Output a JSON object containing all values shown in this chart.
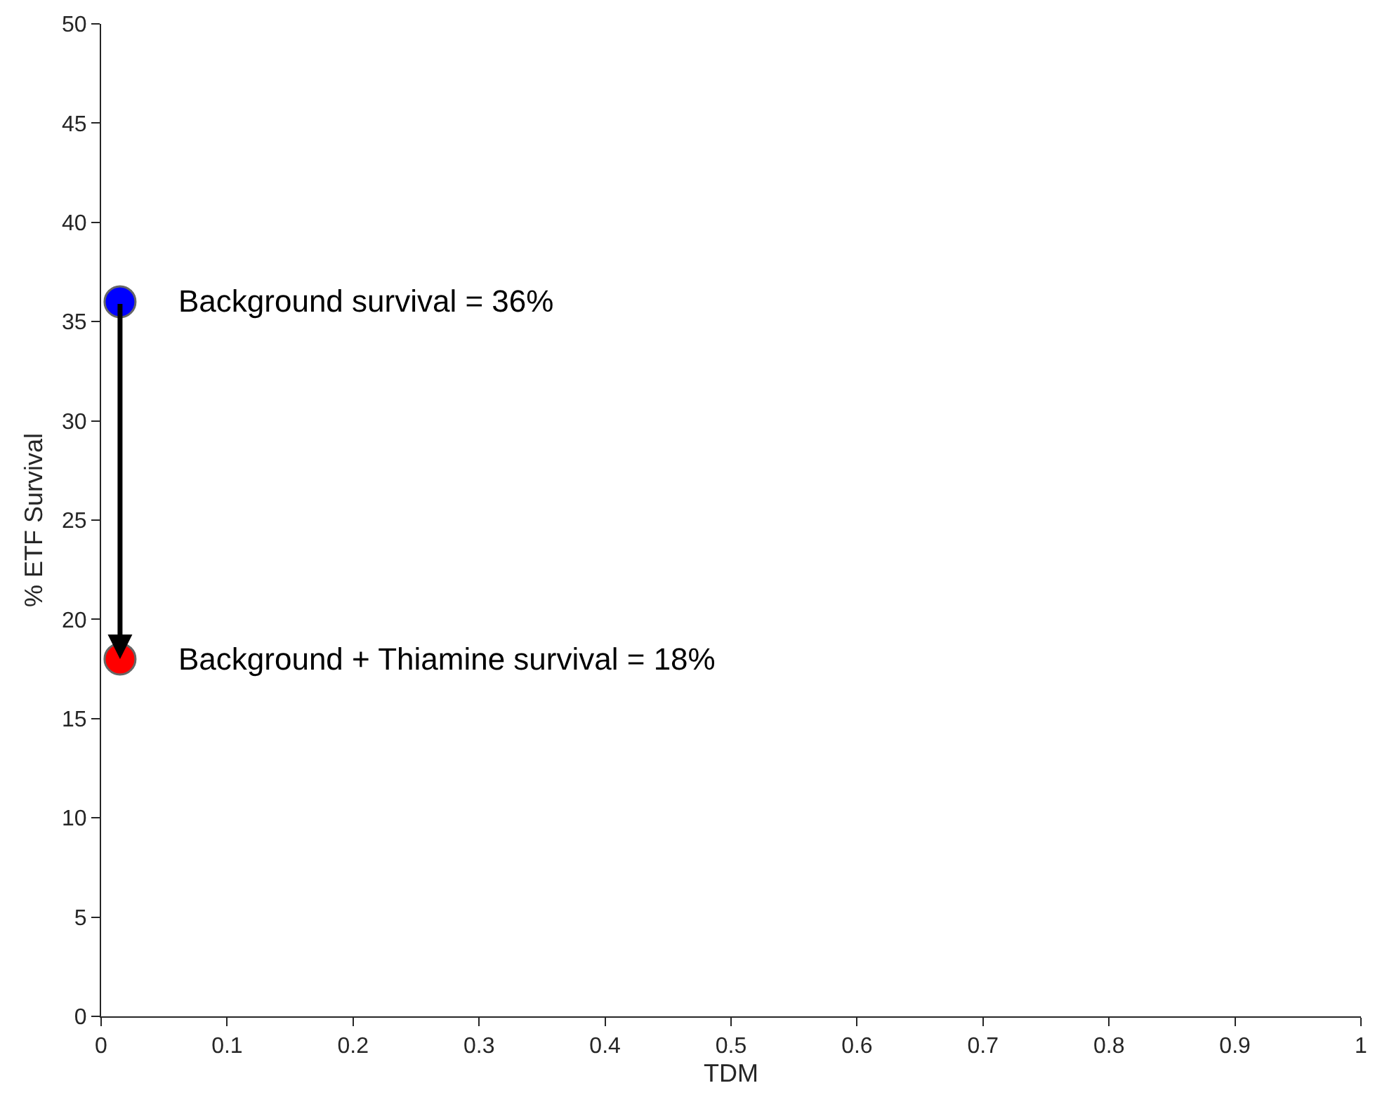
{
  "chart_data": {
    "type": "scatter",
    "xlabel": "TDM",
    "ylabel": "% ETF Survival",
    "x": [
      0.015
    ],
    "series": [
      {
        "color": "#0000ff",
        "values": [
          36
        ]
      },
      {
        "color": "#ff0000",
        "values": [
          18
        ]
      }
    ],
    "annotations": [
      {
        "text": "Background survival = 36%",
        "x": 0.015,
        "y": 36
      },
      {
        "text": "Background + Thiamine survival = 18%",
        "x": 0.015,
        "y": 18
      }
    ],
    "xlim": [
      0,
      1
    ],
    "xticks": [
      0,
      0.1,
      0.2,
      0.3,
      0.4,
      0.5,
      0.6,
      0.7,
      0.8,
      0.9,
      1
    ],
    "ylim": [
      0,
      50
    ],
    "yticks": [
      0,
      5,
      10,
      15,
      20,
      25,
      30,
      35,
      40,
      45,
      50
    ],
    "grid": false,
    "marker": "circle"
  }
}
